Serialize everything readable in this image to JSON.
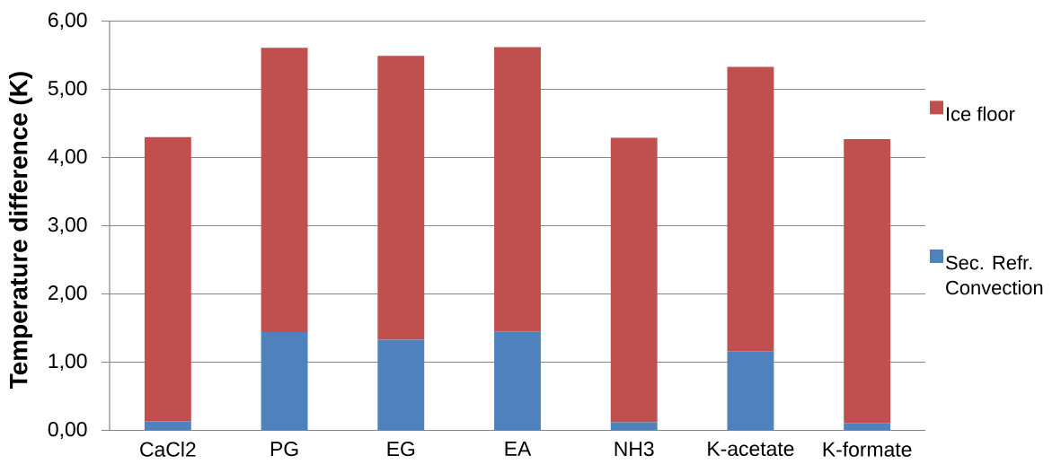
{
  "chart_data": {
    "type": "bar",
    "stacked": true,
    "categories": [
      "CaCl2",
      "PG",
      "EG",
      "EA",
      "NH3",
      "K-acetate",
      "K-formate"
    ],
    "ylabel": "Temperature difference (K)",
    "series": [
      {
        "name": "Sec. Refr. Convection",
        "color": "#4f81bd",
        "values": [
          0.13,
          1.44,
          1.33,
          1.45,
          0.12,
          1.16,
          0.11
        ]
      },
      {
        "name": "Ice floor",
        "color": "#c0504d",
        "values": [
          4.17,
          4.17,
          4.16,
          4.17,
          4.17,
          4.17,
          4.16
        ]
      }
    ],
    "ylim": [
      0,
      6
    ],
    "yticks": [
      {
        "value": 0,
        "label": "0,00"
      },
      {
        "value": 1,
        "label": "1,00"
      },
      {
        "value": 2,
        "label": "2,00"
      },
      {
        "value": 3,
        "label": "3,00"
      },
      {
        "value": 4,
        "label": "4,00"
      },
      {
        "value": 5,
        "label": "5,00"
      },
      {
        "value": 6,
        "label": "6,00"
      }
    ],
    "grid": "y",
    "legend": "right"
  }
}
